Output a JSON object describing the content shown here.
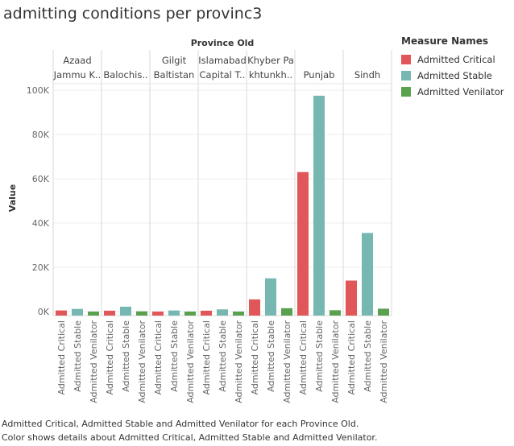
{
  "title": "admitting conditions per provinc3",
  "chart_data": {
    "type": "bar",
    "header_label": "Province Old",
    "ylabel": "Value",
    "ylim": [
      0,
      100000
    ],
    "yticks": [
      {
        "value": 0,
        "label": "0K"
      },
      {
        "value": 20000,
        "label": "20K"
      },
      {
        "value": 40000,
        "label": "40K"
      },
      {
        "value": 60000,
        "label": "60K"
      },
      {
        "value": 80000,
        "label": "80K"
      },
      {
        "value": 100000,
        "label": "100K"
      }
    ],
    "groups": [
      {
        "lines": [
          "Azaad",
          "Jammu K.."
        ],
        "values": [
          500,
          1200,
          0
        ]
      },
      {
        "lines": [
          "Balochis.."
        ],
        "values": [
          400,
          2200,
          100
        ]
      },
      {
        "lines": [
          "Gilgit",
          "Baltistan"
        ],
        "values": [
          0,
          500,
          0
        ]
      },
      {
        "lines": [
          "Islamabad",
          "Capital T.."
        ],
        "values": [
          400,
          1000,
          0
        ]
      },
      {
        "lines": [
          "Khyber Pa",
          "khtunkh.."
        ],
        "values": [
          5500,
          15000,
          1500
        ]
      },
      {
        "lines": [
          "Punjab"
        ],
        "values": [
          63000,
          97500,
          600
        ]
      },
      {
        "lines": [
          "Sindh"
        ],
        "values": [
          14000,
          35500,
          1300
        ]
      }
    ],
    "series": [
      {
        "name": "Admitted Critical",
        "color": "#e15759"
      },
      {
        "name": "Admitted Stable",
        "color": "#76b7b2"
      },
      {
        "name": "Admitted Venilator",
        "color": "#59a14f"
      }
    ]
  },
  "legend": {
    "title": "Measure Names"
  },
  "caption": {
    "line1": "Admitted Critical, Admitted Stable and Admitted Venilator for each Province Old.",
    "line2": "Color shows details about Admitted Critical, Admitted Stable and Admitted Venilator."
  }
}
